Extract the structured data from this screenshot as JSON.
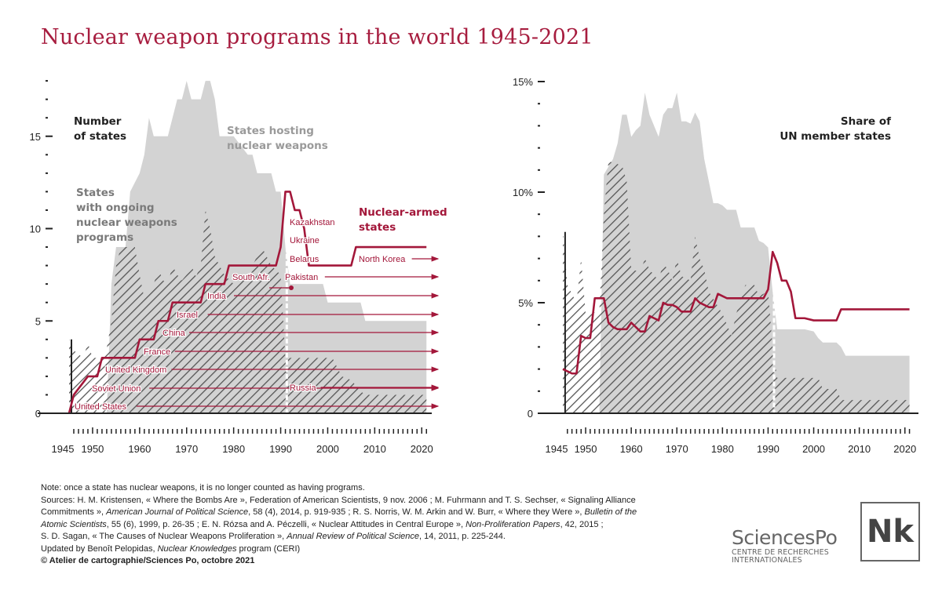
{
  "title": "Nuclear weapon programs in the world 1945-2021",
  "colors": {
    "title": "#a71d3f",
    "nuclear_armed": "#a3173a",
    "hosting": "#d3d3d3",
    "programs_hatch": "#555555",
    "axis": "#222222"
  },
  "chart_data": [
    {
      "type": "area",
      "xlabel": "",
      "ylabel": "Number of states",
      "xlim": [
        1945,
        2021
      ],
      "ylim": [
        0,
        18
      ],
      "yticks": [
        "0",
        "5",
        "10",
        "15"
      ],
      "xticks": [
        "1945",
        "1950",
        "1960",
        "1970",
        "1980",
        "1990",
        "2000",
        "2010",
        "2020"
      ],
      "grid": false,
      "series_labels": {
        "hosting": [
          "States hosting",
          "nuclear weapons"
        ],
        "programs": [
          "States",
          "with ongoing",
          "nuclear weapons",
          "programs"
        ],
        "armed": [
          "Nuclear-armed",
          "states"
        ]
      },
      "series": [
        {
          "name": "States hosting nuclear weapons",
          "style": "gray-area",
          "x": [
            1953,
            1954,
            1955,
            1957,
            1958,
            1960,
            1961,
            1962,
            1963,
            1964,
            1966,
            1967,
            1968,
            1969,
            1970,
            1971,
            1973,
            1974,
            1975,
            1976,
            1977,
            1980,
            1983,
            1984,
            1985,
            1988,
            1989,
            1990,
            1991,
            1992,
            1999,
            2000,
            2007,
            2008,
            2021
          ],
          "y": [
            0,
            7,
            9,
            9,
            12,
            13,
            14,
            16,
            15,
            15,
            15,
            16,
            17,
            17,
            18,
            17,
            17,
            18,
            18,
            17,
            15,
            15,
            14,
            14,
            13,
            13,
            12,
            12,
            9,
            7,
            7,
            6,
            6,
            5,
            5
          ]
        },
        {
          "name": "States with ongoing nuclear weapons programs",
          "style": "hatched",
          "x": [
            1945,
            1946,
            1948,
            1949,
            1950,
            1952,
            1953,
            1954,
            1955,
            1956,
            1959,
            1960,
            1961,
            1962,
            1963,
            1964,
            1965,
            1966,
            1967,
            1968,
            1969,
            1970,
            1971,
            1972,
            1973,
            1974,
            1975,
            1976,
            1978,
            1980,
            1982,
            1984,
            1986,
            1987,
            1988,
            1990,
            1991,
            1992,
            2001,
            2002,
            2003,
            2005,
            2007,
            2008,
            2021
          ],
          "y": [
            4,
            3.4,
            3,
            3.8,
            3,
            3,
            3.5,
            5,
            8,
            9,
            9,
            7.5,
            6.2,
            6.5,
            7,
            7.8,
            7.2,
            7,
            8,
            7.5,
            7.2,
            7.5,
            8,
            7.4,
            8,
            11,
            10,
            8.5,
            7.5,
            7,
            7.2,
            8,
            9,
            8.5,
            8,
            7.5,
            3,
            3,
            3,
            2.5,
            2,
            1.8,
            1.2,
            1,
            1
          ]
        },
        {
          "name": "Nuclear-armed states",
          "style": "red-step",
          "x": [
            1945,
            1946,
            1949,
            1951,
            1952,
            1959,
            1960,
            1963,
            1964,
            1966,
            1967,
            1973,
            1974,
            1978,
            1979,
            1989,
            1990,
            1991,
            1992,
            1993,
            1994,
            1995,
            1996,
            2005,
            2006,
            2021
          ],
          "y": [
            0,
            1,
            2,
            2,
            3,
            3,
            4,
            4,
            5,
            5,
            6,
            6,
            7,
            7,
            8,
            8,
            9,
            12,
            12,
            11,
            11,
            10,
            8,
            8,
            9,
            9
          ]
        }
      ],
      "annotations": {
        "arrowed": [
          "United States",
          "Soviet Union",
          "United Kingdom",
          "France",
          "China",
          "Israel",
          "India",
          "Pakistan",
          "North Korea",
          "Russia"
        ],
        "ended": [
          "South Afr.",
          "Kazakhstan",
          "Ukraine",
          "Belarus"
        ]
      }
    },
    {
      "type": "area",
      "ylabel": "Share of UN member states",
      "xlim": [
        1945,
        2021
      ],
      "ylim": [
        0,
        15
      ],
      "yticks": [
        "0",
        "5%",
        "10%",
        "15%"
      ],
      "xticks": [
        "1945",
        "1950",
        "1960",
        "1970",
        "1980",
        "1990",
        "2000",
        "2010",
        "2020"
      ],
      "grid": false,
      "series_labels": {
        "share": [
          "Share of",
          "UN member states"
        ]
      },
      "series": [
        {
          "name": "States hosting nuclear weapons",
          "style": "gray-area",
          "x": [
            1953,
            1954,
            1956,
            1957,
            1958,
            1959,
            1960,
            1961,
            1962,
            1963,
            1964,
            1965,
            1966,
            1967,
            1968,
            1969,
            1970,
            1971,
            1972,
            1973,
            1974,
            1975,
            1976,
            1978,
            1979,
            1980,
            1981,
            1983,
            1984,
            1987,
            1988,
            1989,
            1990,
            1991,
            1992,
            1998,
            2000,
            2001,
            2002,
            2005,
            2006,
            2007,
            2021
          ],
          "y": [
            0,
            10.8,
            11.5,
            12.2,
            13.5,
            13.5,
            12.5,
            12.8,
            13,
            14.5,
            13.5,
            13,
            12.5,
            13.5,
            13.8,
            13.8,
            14.5,
            13.2,
            13.2,
            13.1,
            13.6,
            13.2,
            11.5,
            9.5,
            9.5,
            9.4,
            9.2,
            9.2,
            8.4,
            8.4,
            7.8,
            7.7,
            7.5,
            5.5,
            3.8,
            3.8,
            3.7,
            3.4,
            3.2,
            3.2,
            3.0,
            2.6,
            2.6
          ]
        },
        {
          "name": "States with ongoing nuclear weapons programs",
          "style": "hatched",
          "x": [
            1945,
            1946,
            1948,
            1949,
            1950,
            1953,
            1954,
            1955,
            1958,
            1959,
            1960,
            1962,
            1963,
            1964,
            1966,
            1967,
            1968,
            1969,
            1970,
            1971,
            1973,
            1974,
            1975,
            1976,
            1977,
            1980,
            1982,
            1983,
            1985,
            1987,
            1988,
            1990,
            1991,
            1992,
            2001,
            2002,
            2005,
            2006,
            2021
          ],
          "y": [
            8.2,
            5.8,
            5,
            7,
            4.5,
            4.6,
            9,
            11.4,
            11.2,
            10.5,
            6.5,
            6.4,
            7,
            6.5,
            6,
            6.8,
            6.5,
            6,
            7,
            6.2,
            6,
            8,
            7,
            6.5,
            5.5,
            4.5,
            3.5,
            4.5,
            5.8,
            5.8,
            5.3,
            5.5,
            3.0,
            1.6,
            1.6,
            1.1,
            1.1,
            0.6,
            0.6
          ]
        },
        {
          "name": "Nuclear-armed states",
          "style": "red-line",
          "x": [
            1945,
            1946,
            1947,
            1948,
            1949,
            1950,
            1951,
            1952,
            1953,
            1954,
            1955,
            1956,
            1957,
            1958,
            1959,
            1960,
            1961,
            1962,
            1963,
            1964,
            1965,
            1966,
            1967,
            1968,
            1969,
            1970,
            1971,
            1972,
            1973,
            1974,
            1975,
            1976,
            1977,
            1978,
            1979,
            1980,
            1981,
            1985,
            1989,
            1990,
            1991,
            1992,
            1993,
            1994,
            1995,
            1996,
            1998,
            2000,
            2002,
            2005,
            2006,
            2010,
            2021
          ],
          "y": [
            2.0,
            1.9,
            1.8,
            1.8,
            3.5,
            3.4,
            3.4,
            5.2,
            5.2,
            5.2,
            4.1,
            3.9,
            3.8,
            3.8,
            3.8,
            4.1,
            3.9,
            3.7,
            3.7,
            4.4,
            4.3,
            4.2,
            5.0,
            4.9,
            4.9,
            4.8,
            4.6,
            4.6,
            4.6,
            5.2,
            5.0,
            4.9,
            4.8,
            4.8,
            5.4,
            5.3,
            5.2,
            5.2,
            5.2,
            5.6,
            7.3,
            6.8,
            6.0,
            6.0,
            5.5,
            4.3,
            4.3,
            4.2,
            4.2,
            4.2,
            4.7,
            4.7,
            4.7
          ]
        }
      ]
    }
  ],
  "footer": {
    "lines": [
      [
        {
          "t": "Note: once a state has nuclear weapons, it is no longer counted as having programs."
        }
      ],
      [
        {
          "t": "Sources: H. M. Kristensen, « Where the Bombs Are », Federation of American Scientists, 9 nov. 2006 ; M. Fuhrmann and T. S. Sechser, « Signaling Alliance"
        }
      ],
      [
        {
          "t": "Commitments », "
        },
        {
          "t": "American Journal of Political Science",
          "i": true
        },
        {
          "t": ", 58 (4), 2014, p. 919-935 ; R. S. Norris, W. M. Arkin and W. Burr, « Where they Were », "
        },
        {
          "t": "Bulletin of the",
          "i": true
        }
      ],
      [
        {
          "t": "Atomic Scientists",
          "i": true
        },
        {
          "t": ", 55 (6), 1999, p. 26-35 ; E. N. Rózsa and A. Péczelli, « Nuclear Attitudes in Central Europe », "
        },
        {
          "t": "Non-Proliferation Papers",
          "i": true
        },
        {
          "t": ", 42, 2015 ;"
        }
      ],
      [
        {
          "t": "S. D. Sagan, « The Causes of Nuclear Weapons Proliferation », "
        },
        {
          "t": "Annual Review of Political Science",
          "i": true
        },
        {
          "t": ", 14, 2011, p. 225-244."
        }
      ],
      [
        {
          "t": "Updated by Benoît Pelopidas, "
        },
        {
          "t": "Nuclear Knowledges",
          "i": true
        },
        {
          "t": " program (CERI)"
        }
      ],
      [
        {
          "t": "© Atelier de cartographie/Sciences Po, octobre 2021",
          "b": true
        }
      ]
    ]
  },
  "logos": {
    "sciencespo": {
      "name": "SciencesPo",
      "sub1": "CENTRE DE RECHERCHES",
      "sub2": "INTERNATIONALES"
    },
    "nk": "Nk"
  }
}
